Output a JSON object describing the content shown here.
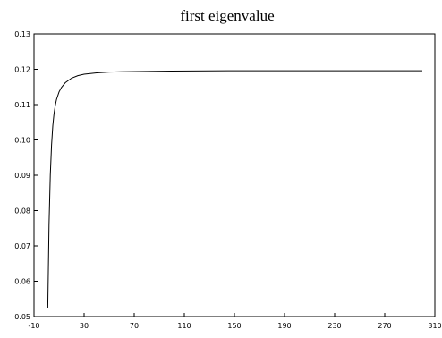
{
  "chart_data": {
    "type": "line",
    "title": "first eigenvalue",
    "xlabel": "",
    "ylabel": "",
    "xlim": [
      -10,
      310
    ],
    "ylim": [
      0.05,
      0.13
    ],
    "xticks": [
      -10,
      30,
      70,
      110,
      150,
      190,
      230,
      270,
      310
    ],
    "xtick_labels": [
      "-10",
      "30",
      "70",
      "110",
      "150",
      "190",
      "230",
      "270",
      "310"
    ],
    "yticks": [
      0.05,
      0.06,
      0.07,
      0.08,
      0.09,
      0.1,
      0.11,
      0.12,
      0.13
    ],
    "ytick_labels": [
      "0.05",
      "0.06",
      "0.07",
      "0.08",
      "0.09",
      "0.10",
      "0.11",
      "0.12",
      "0.13"
    ],
    "grid": false,
    "line_color": "#000000",
    "series": [
      {
        "x": [
          1,
          2,
          3,
          4,
          5,
          6,
          7,
          8,
          10,
          12,
          15,
          20,
          25,
          30,
          40,
          50,
          60,
          80,
          100,
          150,
          200,
          250,
          300
        ],
        "y": [
          0.0525,
          0.076,
          0.09,
          0.0985,
          0.104,
          0.1075,
          0.1098,
          0.1115,
          0.1136,
          0.1149,
          0.1162,
          0.1175,
          0.1182,
          0.1186,
          0.119,
          0.1192,
          0.1193,
          0.1194,
          0.1195,
          0.1196,
          0.1196,
          0.1196,
          0.1196
        ]
      }
    ]
  }
}
